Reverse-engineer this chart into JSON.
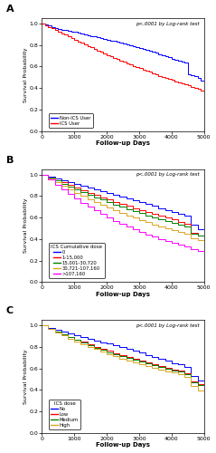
{
  "panel_A": {
    "label": "A",
    "ptext": "p<.0001 by Log-rank test",
    "ylabel": "Survival Probability",
    "xlabel": "Follow-up Days",
    "xlim": [
      0,
      5000
    ],
    "ylim": [
      0.0,
      1.05
    ],
    "yticks": [
      0.0,
      0.2,
      0.4,
      0.6,
      0.8,
      1.0
    ],
    "xticks": [
      0,
      1000,
      2000,
      3000,
      4000,
      5000
    ],
    "curves": [
      {
        "label": "Non-ICS User",
        "color": "blue",
        "x": [
          0,
          100,
          200,
          300,
          400,
          500,
          600,
          700,
          800,
          900,
          1000,
          1100,
          1200,
          1300,
          1400,
          1500,
          1600,
          1700,
          1800,
          1900,
          2000,
          2100,
          2200,
          2300,
          2400,
          2500,
          2600,
          2700,
          2800,
          2900,
          3000,
          3100,
          3200,
          3300,
          3400,
          3500,
          3600,
          3700,
          3800,
          3900,
          4000,
          4100,
          4200,
          4300,
          4400,
          4500,
          4600,
          4700,
          4800,
          4900,
          5000
        ],
        "y": [
          1.0,
          0.99,
          0.98,
          0.97,
          0.96,
          0.95,
          0.944,
          0.938,
          0.932,
          0.926,
          0.92,
          0.914,
          0.907,
          0.9,
          0.893,
          0.886,
          0.879,
          0.872,
          0.865,
          0.858,
          0.851,
          0.844,
          0.836,
          0.828,
          0.82,
          0.812,
          0.804,
          0.796,
          0.788,
          0.78,
          0.772,
          0.763,
          0.754,
          0.745,
          0.736,
          0.726,
          0.716,
          0.706,
          0.696,
          0.685,
          0.674,
          0.664,
          0.655,
          0.646,
          0.637,
          0.527,
          0.52,
          0.51,
          0.49,
          0.47,
          0.455
        ]
      },
      {
        "label": "ICS User",
        "color": "red",
        "x": [
          0,
          100,
          200,
          300,
          400,
          500,
          600,
          700,
          800,
          900,
          1000,
          1100,
          1200,
          1300,
          1400,
          1500,
          1600,
          1700,
          1800,
          1900,
          2000,
          2100,
          2200,
          2300,
          2400,
          2500,
          2600,
          2700,
          2800,
          2900,
          3000,
          3100,
          3200,
          3300,
          3400,
          3500,
          3600,
          3700,
          3800,
          3900,
          4000,
          4100,
          4200,
          4300,
          4400,
          4500,
          4600,
          4700,
          4800,
          4900,
          5000
        ],
        "y": [
          1.0,
          0.985,
          0.97,
          0.955,
          0.94,
          0.925,
          0.91,
          0.895,
          0.88,
          0.865,
          0.85,
          0.835,
          0.82,
          0.806,
          0.792,
          0.778,
          0.764,
          0.75,
          0.736,
          0.722,
          0.708,
          0.694,
          0.681,
          0.668,
          0.655,
          0.642,
          0.63,
          0.618,
          0.606,
          0.595,
          0.584,
          0.573,
          0.561,
          0.549,
          0.537,
          0.525,
          0.514,
          0.503,
          0.493,
          0.483,
          0.473,
          0.462,
          0.451,
          0.441,
          0.432,
          0.423,
          0.413,
          0.403,
          0.393,
          0.373,
          0.353
        ]
      }
    ]
  },
  "panel_B": {
    "label": "B",
    "ptext": "p<.0001 by Log-rank test",
    "ylabel": "Survival Probability",
    "xlabel": "Follow-up Days",
    "xlim": [
      0,
      5000
    ],
    "ylim": [
      0.0,
      1.05
    ],
    "yticks": [
      0.0,
      0.2,
      0.4,
      0.6,
      0.8,
      1.0
    ],
    "xticks": [
      0,
      1000,
      2000,
      3000,
      4000,
      5000
    ],
    "curves": [
      {
        "label": "0",
        "color": "blue",
        "x": [
          0,
          200,
          400,
          600,
          800,
          1000,
          1200,
          1400,
          1600,
          1800,
          2000,
          2200,
          2400,
          2600,
          2800,
          3000,
          3200,
          3400,
          3600,
          3800,
          4000,
          4200,
          4400,
          4600,
          4800,
          5000
        ],
        "y": [
          1.0,
          0.98,
          0.96,
          0.944,
          0.928,
          0.912,
          0.895,
          0.878,
          0.862,
          0.846,
          0.83,
          0.814,
          0.797,
          0.78,
          0.763,
          0.746,
          0.727,
          0.707,
          0.688,
          0.67,
          0.652,
          0.636,
          0.615,
          0.53,
          0.49,
          0.455
        ]
      },
      {
        "label": "1-15,000",
        "color": "red",
        "x": [
          0,
          200,
          400,
          600,
          800,
          1000,
          1200,
          1400,
          1600,
          1800,
          2000,
          2200,
          2400,
          2600,
          2800,
          3000,
          3200,
          3400,
          3600,
          3800,
          4000,
          4200,
          4400,
          4600,
          4800,
          5000
        ],
        "y": [
          1.0,
          0.975,
          0.95,
          0.926,
          0.902,
          0.878,
          0.855,
          0.832,
          0.81,
          0.788,
          0.768,
          0.748,
          0.728,
          0.708,
          0.689,
          0.67,
          0.651,
          0.633,
          0.615,
          0.598,
          0.58,
          0.562,
          0.545,
          0.46,
          0.435,
          0.42
        ]
      },
      {
        "label": "15,001-30,720",
        "color": "green",
        "x": [
          0,
          200,
          400,
          600,
          800,
          1000,
          1200,
          1400,
          1600,
          1800,
          2000,
          2200,
          2400,
          2600,
          2800,
          3000,
          3200,
          3400,
          3600,
          3800,
          4000,
          4200,
          4400,
          4600,
          4800,
          5000
        ],
        "y": [
          1.0,
          0.972,
          0.944,
          0.916,
          0.889,
          0.862,
          0.837,
          0.813,
          0.789,
          0.766,
          0.743,
          0.721,
          0.7,
          0.679,
          0.659,
          0.64,
          0.62,
          0.601,
          0.583,
          0.565,
          0.547,
          0.53,
          0.513,
          0.45,
          0.43,
          0.41
        ]
      },
      {
        "label": "30,721-107,160",
        "color": "#DAA520",
        "x": [
          0,
          200,
          400,
          600,
          800,
          1000,
          1200,
          1400,
          1600,
          1800,
          2000,
          2200,
          2400,
          2600,
          2800,
          3000,
          3200,
          3400,
          3600,
          3800,
          4000,
          4200,
          4400,
          4600,
          4800,
          5000
        ],
        "y": [
          1.0,
          0.965,
          0.93,
          0.897,
          0.864,
          0.832,
          0.802,
          0.773,
          0.745,
          0.718,
          0.692,
          0.667,
          0.643,
          0.62,
          0.598,
          0.577,
          0.556,
          0.537,
          0.518,
          0.5,
          0.482,
          0.465,
          0.449,
          0.41,
          0.39,
          0.375
        ]
      },
      {
        "label": ">107,160",
        "color": "magenta",
        "x": [
          0,
          200,
          400,
          600,
          800,
          1000,
          1200,
          1400,
          1600,
          1800,
          2000,
          2200,
          2400,
          2600,
          2800,
          3000,
          3200,
          3400,
          3600,
          3800,
          4000,
          4200,
          4400,
          4600,
          4800,
          5000
        ],
        "y": [
          1.0,
          0.952,
          0.905,
          0.86,
          0.817,
          0.776,
          0.737,
          0.7,
          0.665,
          0.632,
          0.6,
          0.57,
          0.542,
          0.515,
          0.49,
          0.466,
          0.443,
          0.421,
          0.4,
          0.381,
          0.363,
          0.346,
          0.33,
          0.305,
          0.288,
          0.278
        ]
      }
    ],
    "legend_title": "ICS Cumulative dose"
  },
  "panel_C": {
    "label": "C",
    "ptext": "p<.0001 by Log-rank test",
    "ylabel": "Survival Probability",
    "xlabel": "Follow-up Days",
    "xlim": [
      0,
      5000
    ],
    "ylim": [
      0.0,
      1.05
    ],
    "yticks": [
      0.0,
      0.2,
      0.4,
      0.6,
      0.8,
      1.0
    ],
    "xticks": [
      0,
      1000,
      2000,
      3000,
      4000,
      5000
    ],
    "curves": [
      {
        "label": "No",
        "color": "blue",
        "x": [
          0,
          200,
          400,
          600,
          800,
          1000,
          1200,
          1400,
          1600,
          1800,
          2000,
          2200,
          2400,
          2600,
          2800,
          3000,
          3200,
          3400,
          3600,
          3800,
          4000,
          4200,
          4400,
          4600,
          4800,
          5000
        ],
        "y": [
          1.0,
          0.98,
          0.96,
          0.944,
          0.928,
          0.912,
          0.895,
          0.878,
          0.862,
          0.846,
          0.83,
          0.814,
          0.797,
          0.78,
          0.763,
          0.746,
          0.727,
          0.707,
          0.688,
          0.67,
          0.652,
          0.636,
          0.615,
          0.53,
          0.49,
          0.455
        ]
      },
      {
        "label": "Low",
        "color": "red",
        "x": [
          0,
          200,
          400,
          600,
          800,
          1000,
          1200,
          1400,
          1600,
          1800,
          2000,
          2200,
          2400,
          2600,
          2800,
          3000,
          3200,
          3400,
          3600,
          3800,
          4000,
          4200,
          4400,
          4600,
          4800,
          5000
        ],
        "y": [
          1.0,
          0.973,
          0.946,
          0.92,
          0.895,
          0.871,
          0.848,
          0.825,
          0.804,
          0.783,
          0.763,
          0.743,
          0.724,
          0.706,
          0.688,
          0.671,
          0.654,
          0.638,
          0.622,
          0.607,
          0.592,
          0.577,
          0.56,
          0.48,
          0.455,
          0.44
        ]
      },
      {
        "label": "Medium",
        "color": "green",
        "x": [
          0,
          200,
          400,
          600,
          800,
          1000,
          1200,
          1400,
          1600,
          1800,
          2000,
          2200,
          2400,
          2600,
          2800,
          3000,
          3200,
          3400,
          3600,
          3800,
          4000,
          4200,
          4400,
          4600,
          4800,
          5000
        ],
        "y": [
          1.0,
          0.971,
          0.943,
          0.916,
          0.89,
          0.865,
          0.841,
          0.818,
          0.796,
          0.775,
          0.754,
          0.734,
          0.715,
          0.697,
          0.679,
          0.662,
          0.645,
          0.629,
          0.614,
          0.599,
          0.584,
          0.57,
          0.55,
          0.475,
          0.45,
          0.43
        ]
      },
      {
        "label": "High",
        "color": "#DAA520",
        "x": [
          0,
          200,
          400,
          600,
          800,
          1000,
          1200,
          1400,
          1600,
          1800,
          2000,
          2200,
          2400,
          2600,
          2800,
          3000,
          3200,
          3400,
          3600,
          3800,
          4000,
          4200,
          4400,
          4600,
          4800,
          5000
        ],
        "y": [
          1.0,
          0.968,
          0.937,
          0.908,
          0.88,
          0.853,
          0.827,
          0.803,
          0.78,
          0.757,
          0.736,
          0.715,
          0.695,
          0.676,
          0.658,
          0.64,
          0.623,
          0.607,
          0.591,
          0.576,
          0.561,
          0.547,
          0.525,
          0.44,
          0.395,
          0.35
        ]
      }
    ],
    "legend_title": "ICS dose"
  }
}
